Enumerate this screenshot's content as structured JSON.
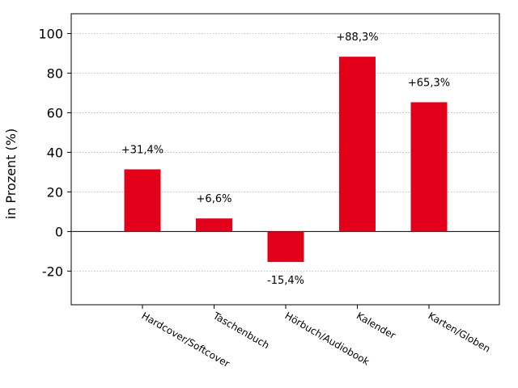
{
  "chart_data": {
    "type": "bar",
    "categories": [
      "Hardcover/Softcover",
      "Taschenbuch",
      "Hörbuch/Audiobook",
      "Kalender",
      "Karten/Globen"
    ],
    "values": [
      31.4,
      6.6,
      -15.4,
      88.3,
      65.3
    ],
    "data_labels": [
      "+31,4%",
      "+6,6%",
      "-15,4%",
      "+88,3%",
      "+65,3%"
    ],
    "ylabel": "in Prozent (%)",
    "xlabel": "",
    "ylim": [
      -37,
      110
    ],
    "yticks": [
      -20,
      0,
      20,
      40,
      60,
      80,
      100
    ],
    "grid": "horizontal dotted",
    "bar_color": "#e2001a"
  }
}
